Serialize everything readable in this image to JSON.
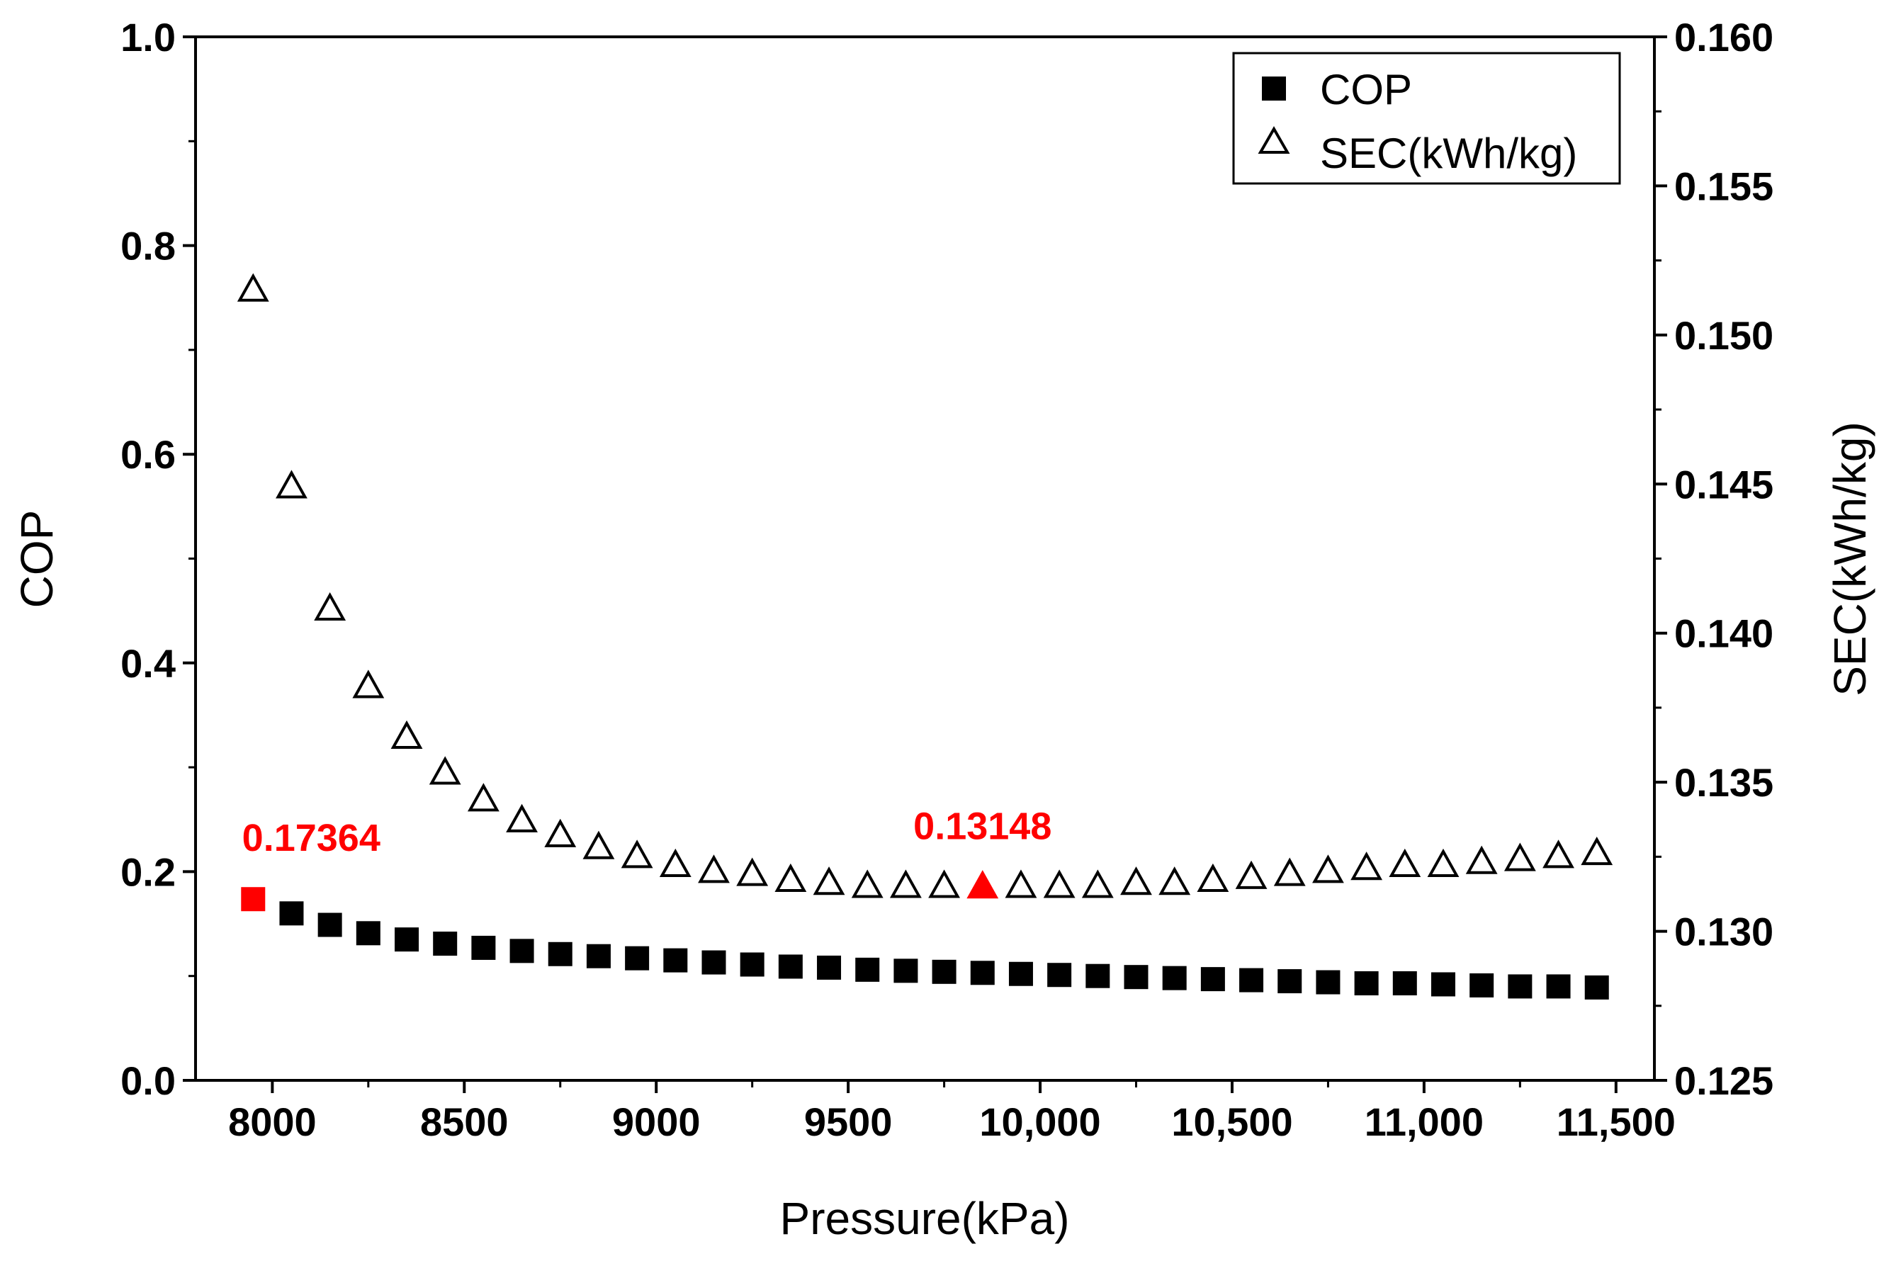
{
  "chart_data": {
    "type": "scatter",
    "xlabel": "Pressure(kPa)",
    "ylabel_left": "COP",
    "ylabel_right": "SEC(kWh/kg)",
    "xlim": [
      7800,
      11600
    ],
    "ylim_left": [
      0.0,
      1.0
    ],
    "ylim_right": [
      0.125,
      0.16
    ],
    "x_ticks": [
      8000,
      8500,
      9000,
      9500,
      10000,
      10500,
      11000,
      11500
    ],
    "x_tick_labels": [
      "8000",
      "8500",
      "9000",
      "9500",
      "10,000",
      "10,500",
      "11,000",
      "11,500"
    ],
    "y_left_ticks": [
      0.0,
      0.2,
      0.4,
      0.6,
      0.8,
      1.0
    ],
    "y_left_tick_labels": [
      "0.0",
      "0.2",
      "0.4",
      "0.6",
      "0.8",
      "1.0"
    ],
    "y_right_ticks": [
      0.125,
      0.13,
      0.135,
      0.14,
      0.145,
      0.15,
      0.155,
      0.16
    ],
    "y_right_tick_labels": [
      "0.125",
      "0.130",
      "0.135",
      "0.140",
      "0.145",
      "0.150",
      "0.155",
      "0.160"
    ],
    "x": [
      7950,
      8050,
      8150,
      8250,
      8350,
      8450,
      8550,
      8650,
      8750,
      8850,
      8950,
      9050,
      9150,
      9250,
      9350,
      9450,
      9550,
      9650,
      9750,
      9850,
      9950,
      10050,
      10150,
      10250,
      10350,
      10450,
      10550,
      10650,
      10750,
      10850,
      10950,
      11050,
      11150,
      11250,
      11350,
      11450
    ],
    "series": [
      {
        "name": "COP",
        "axis": "left",
        "marker": "filled-square",
        "color": "#000000",
        "values": [
          0.17364,
          0.16,
          0.149,
          0.141,
          0.135,
          0.131,
          0.127,
          0.124,
          0.121,
          0.119,
          0.117,
          0.115,
          0.113,
          0.111,
          0.109,
          0.108,
          0.106,
          0.105,
          0.104,
          0.103,
          0.102,
          0.101,
          0.1,
          0.099,
          0.098,
          0.097,
          0.096,
          0.095,
          0.094,
          0.093,
          0.093,
          0.092,
          0.091,
          0.09,
          0.09,
          0.089
        ]
      },
      {
        "name": "SEC(kWh/kg)",
        "axis": "right",
        "marker": "open-triangle",
        "color": "#000000",
        "values": [
          0.1515,
          0.1449,
          0.1408,
          0.1382,
          0.1365,
          0.1353,
          0.1344,
          0.1337,
          0.1332,
          0.1328,
          0.1325,
          0.1322,
          0.132,
          0.1319,
          0.1317,
          0.1316,
          0.1315,
          0.1315,
          0.1315,
          0.13148,
          0.1315,
          0.1315,
          0.1315,
          0.1316,
          0.1316,
          0.1317,
          0.1318,
          0.1319,
          0.132,
          0.1321,
          0.1322,
          0.1322,
          0.1323,
          0.1324,
          0.1325,
          0.1326
        ]
      }
    ],
    "highlights": [
      {
        "series": "COP",
        "index": 0,
        "label": "0.17364",
        "color": "#ff0000"
      },
      {
        "series": "SEC(kWh/kg)",
        "index": 19,
        "label": "0.13148",
        "color": "#ff0000"
      }
    ],
    "legend_position": "top-right",
    "grid": false
  }
}
